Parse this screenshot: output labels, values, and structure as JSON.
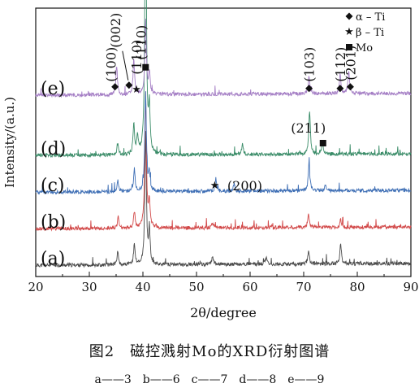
{
  "figure": {
    "title": "图2　磁控溅射Mo的XRD衍射图谱",
    "legend_line": "a——3　b——6　c——7　d——8　e——9"
  },
  "chart_data": {
    "type": "line",
    "xlabel": "2θ/degree",
    "ylabel": "Intensity/(a.u.)",
    "xlim": [
      20,
      90
    ],
    "xticks": [
      20,
      30,
      40,
      50,
      60,
      70,
      80,
      90
    ],
    "yticks_visible": false,
    "grid": false,
    "legend_position": "top-right",
    "legend": [
      {
        "symbol": "diamond",
        "text": "α – Ti"
      },
      {
        "symbol": "star",
        "text": "β – Ti"
      },
      {
        "symbol": "square",
        "text": "Mo"
      }
    ],
    "series": [
      {
        "name": "(a)",
        "color": "#4a4a4a",
        "baseline": 0.0,
        "peaks": [
          [
            35.3,
            0.35
          ],
          [
            38.4,
            0.55
          ],
          [
            40.5,
            3.6
          ],
          [
            41.2,
            0.9
          ],
          [
            53.0,
            0.25
          ],
          [
            63.0,
            0.2
          ],
          [
            70.9,
            0.35
          ],
          [
            76.9,
            0.55
          ]
        ]
      },
      {
        "name": "(b)",
        "color": "#d24a4a",
        "baseline": 1.0,
        "peaks": [
          [
            35.4,
            0.3
          ],
          [
            38.4,
            0.45
          ],
          [
            40.5,
            3.7
          ],
          [
            41.2,
            0.7
          ],
          [
            53.0,
            0.15
          ],
          [
            70.9,
            0.35
          ],
          [
            76.9,
            0.2
          ]
        ]
      },
      {
        "name": "(c)",
        "color": "#3f6fb5",
        "baseline": 2.0,
        "peaks": [
          [
            35.3,
            0.3
          ],
          [
            38.4,
            0.6
          ],
          [
            40.5,
            2.7
          ],
          [
            41.2,
            0.5
          ],
          [
            53.6,
            0.35
          ],
          [
            57.0,
            0.2
          ],
          [
            71.0,
            0.8
          ],
          [
            74.0,
            0.15
          ]
        ]
      },
      {
        "name": "(d)",
        "color": "#3a8c68",
        "baseline": 3.0,
        "peaks": [
          [
            35.3,
            0.3
          ],
          [
            38.3,
            0.8
          ],
          [
            39.0,
            0.5
          ],
          [
            40.5,
            7.5
          ],
          [
            41.2,
            1.2
          ],
          [
            58.6,
            0.3
          ],
          [
            71.1,
            1.2
          ],
          [
            73.5,
            0.3
          ]
        ]
      },
      {
        "name": "(e)",
        "color": "#a57fc5",
        "baseline": 4.65,
        "peaks": [
          [
            35.1,
            0.8
          ],
          [
            38.3,
            1.0
          ],
          [
            40.5,
            2.0
          ],
          [
            41.2,
            0.6
          ],
          [
            71.0,
            0.5
          ],
          [
            76.8,
            0.5
          ],
          [
            78.4,
            0.6
          ]
        ]
      }
    ],
    "annotations": [
      {
        "text": "(100)",
        "x": 35.1,
        "series": "(e)",
        "marker": "diamond"
      },
      {
        "text": "(002)",
        "x": 37.4,
        "series": "(e)",
        "marker": "diamond"
      },
      {
        "text": "(110)",
        "x": 38.5,
        "series": "(e)",
        "marker": "star"
      },
      {
        "text": "(110)",
        "x": 40.5,
        "series": "(e)",
        "marker": "square"
      },
      {
        "text": "(103)",
        "x": 71.0,
        "series": "(e)",
        "marker": "diamond"
      },
      {
        "text": "(112)",
        "x": 76.8,
        "series": "(e)",
        "marker": "diamond"
      },
      {
        "text": "(201)",
        "x": 78.7,
        "series": "(e)",
        "marker": "diamond"
      },
      {
        "text": "(211)",
        "x": 73.6,
        "series": "(d)",
        "marker": "square"
      },
      {
        "text": "(200)",
        "x": 53.4,
        "series": "(c)",
        "marker": "star"
      }
    ]
  }
}
